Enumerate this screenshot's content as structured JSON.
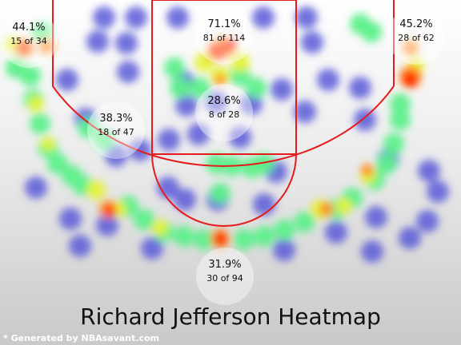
{
  "title": "Richard Jefferson Heatmap",
  "footer": "* Generated by NBAsavant.com",
  "colors": {
    "court_lines": "#e41c1c",
    "cold": "#5b5bd8",
    "hot": "#ff2200"
  },
  "chart_data": {
    "type": "heatmap",
    "title": "Richard Jefferson Heatmap",
    "zones": [
      {
        "name": "left-corner-three",
        "pct": "44.1%",
        "made": 15,
        "attempts": 34,
        "label": "15 of 34"
      },
      {
        "name": "restricted-area",
        "pct": "71.1%",
        "made": 81,
        "attempts": 114,
        "label": "81 of 114"
      },
      {
        "name": "right-corner-three",
        "pct": "45.2%",
        "made": 28,
        "attempts": 62,
        "label": "28 of 62"
      },
      {
        "name": "left-mid-range",
        "pct": "38.3%",
        "made": 18,
        "attempts": 47,
        "label": "18 of 47"
      },
      {
        "name": "paint-non-ra",
        "pct": "28.6%",
        "made": 8,
        "attempts": 28,
        "label": "8 of 28"
      },
      {
        "name": "above-break-three",
        "pct": "31.9%",
        "made": 30,
        "attempts": 94,
        "label": "30 of 94"
      }
    ]
  }
}
